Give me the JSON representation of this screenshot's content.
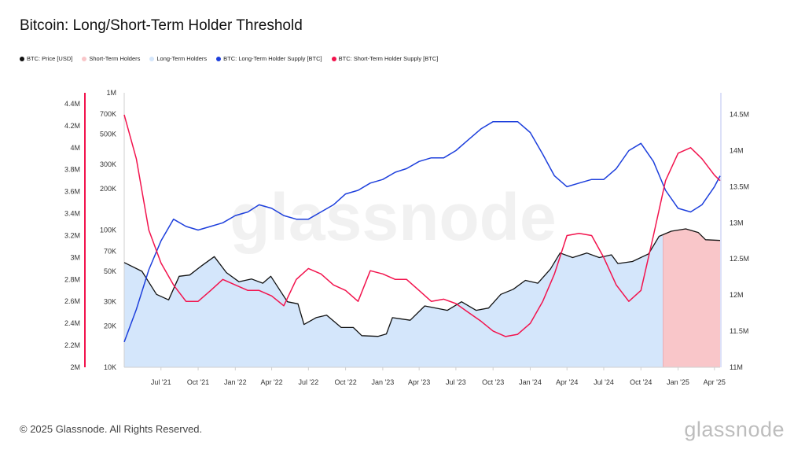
{
  "title": "Bitcoin: Long/Short-Term Holder Threshold",
  "legend": [
    {
      "label": "BTC: Price [USD]",
      "color": "#111111"
    },
    {
      "label": "Short-Term Holders",
      "color": "#f9c6c9"
    },
    {
      "label": "Long-Term Holders",
      "color": "#d4e6fb"
    },
    {
      "label": "BTC: Long-Term Holder Supply [BTC]",
      "color": "#1d3fdc"
    },
    {
      "label": "BTC: Short-Term Holder Supply [BTC]",
      "color": "#f2134d"
    }
  ],
  "watermark": "glassnode",
  "footer": "© 2025 Glassnode. All Rights Reserved.",
  "brand": "glassnode",
  "chart_data": {
    "type": "line",
    "title": "Bitcoin: Long/Short-Term Holder Threshold",
    "x_ticks": [
      "Jul '21",
      "Oct '21",
      "Jan '22",
      "Apr '22",
      "Jul '22",
      "Oct '22",
      "Jan '23",
      "Apr '23",
      "Jul '23",
      "Oct '23",
      "Jan '24",
      "Apr '24",
      "Jul '24",
      "Oct '24",
      "Jan '25",
      "Apr '25"
    ],
    "x_range": [
      "2021-04-01",
      "2025-04-15"
    ],
    "axes": {
      "left_outer": {
        "ticks": [
          "2M",
          "2.2M",
          "2.4M",
          "2.6M",
          "2.8M",
          "3M",
          "3.2M",
          "3.4M",
          "3.6M",
          "3.8M",
          "4M",
          "4.2M",
          "4.4M"
        ],
        "range": [
          2000000,
          4500000
        ],
        "color": "#f2134d"
      },
      "left_inner": {
        "ticks": [
          "10K",
          "20K",
          "30K",
          "50K",
          "70K",
          "100K",
          "200K",
          "300K",
          "500K",
          "700K",
          "1M"
        ],
        "range": [
          10000,
          1000000
        ],
        "scale": "log"
      },
      "right": {
        "ticks": [
          "11M",
          "11.5M",
          "12M",
          "12.5M",
          "13M",
          "13.5M",
          "14M",
          "14.5M"
        ],
        "range": [
          11000000,
          14800000
        ],
        "color": "#1d3fdc"
      }
    },
    "series": [
      {
        "name": "BTC: Price [USD]",
        "axis": "left_inner",
        "color": "#111111",
        "x": [
          "2021-04-01",
          "2021-05-15",
          "2021-06-20",
          "2021-07-20",
          "2021-08-15",
          "2021-09-10",
          "2021-10-10",
          "2021-11-10",
          "2021-12-10",
          "2022-01-10",
          "2022-02-10",
          "2022-03-10",
          "2022-03-30",
          "2022-05-10",
          "2022-06-05",
          "2022-06-20",
          "2022-07-20",
          "2022-08-15",
          "2022-09-20",
          "2022-10-20",
          "2022-11-10",
          "2022-12-20",
          "2023-01-10",
          "2023-01-25",
          "2023-03-10",
          "2023-04-15",
          "2023-06-10",
          "2023-07-15",
          "2023-08-20",
          "2023-09-20",
          "2023-10-20",
          "2023-11-20",
          "2023-12-20",
          "2024-01-20",
          "2024-02-20",
          "2024-03-15",
          "2024-04-15",
          "2024-05-20",
          "2024-06-20",
          "2024-07-20",
          "2024-08-05",
          "2024-09-10",
          "2024-10-20",
          "2024-11-15",
          "2024-12-15",
          "2025-01-20",
          "2025-02-20",
          "2025-03-10",
          "2025-04-15"
        ],
        "values": [
          58000,
          50000,
          34000,
          31000,
          46000,
          47000,
          55000,
          64000,
          49000,
          42000,
          44000,
          41000,
          46000,
          30000,
          29000,
          20500,
          23000,
          24000,
          19500,
          19500,
          17000,
          16800,
          17500,
          23000,
          22000,
          28000,
          26000,
          30000,
          26000,
          27000,
          34000,
          37000,
          43000,
          41000,
          52000,
          68000,
          63000,
          68000,
          63000,
          66000,
          57000,
          59000,
          67000,
          90000,
          98000,
          102000,
          96000,
          85000,
          84000
        ]
      },
      {
        "name": "BTC: Long-Term Holder Supply [BTC]",
        "axis": "right",
        "color": "#1d3fdc",
        "x": [
          "2021-04-01",
          "2021-05-01",
          "2021-06-01",
          "2021-07-01",
          "2021-08-01",
          "2021-09-01",
          "2021-10-01",
          "2021-11-01",
          "2021-12-01",
          "2022-01-01",
          "2022-02-01",
          "2022-03-01",
          "2022-04-01",
          "2022-05-01",
          "2022-06-01",
          "2022-07-01",
          "2022-08-01",
          "2022-09-01",
          "2022-10-01",
          "2022-11-01",
          "2022-12-01",
          "2023-01-01",
          "2023-02-01",
          "2023-03-01",
          "2023-04-01",
          "2023-05-01",
          "2023-06-01",
          "2023-07-01",
          "2023-08-01",
          "2023-09-01",
          "2023-10-01",
          "2023-11-01",
          "2023-12-01",
          "2024-01-01",
          "2024-02-01",
          "2024-03-01",
          "2024-04-01",
          "2024-05-01",
          "2024-06-01",
          "2024-07-01",
          "2024-08-01",
          "2024-09-01",
          "2024-10-01",
          "2024-11-01",
          "2024-12-01",
          "2025-01-01",
          "2025-02-01",
          "2025-03-01",
          "2025-04-01",
          "2025-04-15"
        ],
        "values": [
          11350000,
          11800000,
          12350000,
          12750000,
          13050000,
          12950000,
          12900000,
          12950000,
          13000000,
          13100000,
          13150000,
          13250000,
          13200000,
          13100000,
          13050000,
          13050000,
          13150000,
          13250000,
          13400000,
          13450000,
          13550000,
          13600000,
          13700000,
          13750000,
          13850000,
          13900000,
          13900000,
          14000000,
          14150000,
          14300000,
          14400000,
          14400000,
          14400000,
          14250000,
          13950000,
          13650000,
          13500000,
          13550000,
          13600000,
          13600000,
          13750000,
          14000000,
          14100000,
          13850000,
          13450000,
          13200000,
          13150000,
          13250000,
          13500000,
          13650000
        ]
      },
      {
        "name": "BTC: Short-Term Holder Supply [BTC]",
        "axis": "left_outer",
        "color": "#f2134d",
        "x": [
          "2021-04-01",
          "2021-05-01",
          "2021-06-01",
          "2021-07-01",
          "2021-08-01",
          "2021-09-01",
          "2021-10-01",
          "2021-11-01",
          "2021-12-01",
          "2022-01-01",
          "2022-02-01",
          "2022-03-01",
          "2022-04-01",
          "2022-05-01",
          "2022-06-01",
          "2022-07-01",
          "2022-08-01",
          "2022-09-01",
          "2022-10-01",
          "2022-11-01",
          "2022-12-01",
          "2023-01-01",
          "2023-02-01",
          "2023-03-01",
          "2023-04-01",
          "2023-05-01",
          "2023-06-01",
          "2023-07-01",
          "2023-08-01",
          "2023-09-01",
          "2023-10-01",
          "2023-11-01",
          "2023-12-01",
          "2024-01-01",
          "2024-02-01",
          "2024-03-01",
          "2024-04-01",
          "2024-05-01",
          "2024-06-01",
          "2024-07-01",
          "2024-08-01",
          "2024-09-01",
          "2024-10-01",
          "2024-11-01",
          "2024-12-01",
          "2025-01-01",
          "2025-02-01",
          "2025-03-01",
          "2025-04-01",
          "2025-04-15"
        ],
        "values": [
          4300000,
          3900000,
          3250000,
          2950000,
          2750000,
          2600000,
          2600000,
          2700000,
          2800000,
          2750000,
          2700000,
          2700000,
          2650000,
          2560000,
          2800000,
          2900000,
          2850000,
          2750000,
          2700000,
          2600000,
          2880000,
          2850000,
          2800000,
          2800000,
          2700000,
          2600000,
          2620000,
          2580000,
          2500000,
          2420000,
          2330000,
          2280000,
          2300000,
          2400000,
          2600000,
          2850000,
          3200000,
          3220000,
          3200000,
          3000000,
          2750000,
          2600000,
          2700000,
          3200000,
          3700000,
          3950000,
          4000000,
          3900000,
          3750000,
          3700000
        ]
      }
    ],
    "areas": [
      {
        "name": "Long-Term Holders",
        "color": "#d4e6fb",
        "from": "2021-04-01",
        "to": "2024-11-25"
      },
      {
        "name": "Short-Term Holders",
        "color": "#f9c6c9",
        "from": "2024-11-25",
        "to": "2025-04-15"
      }
    ]
  }
}
